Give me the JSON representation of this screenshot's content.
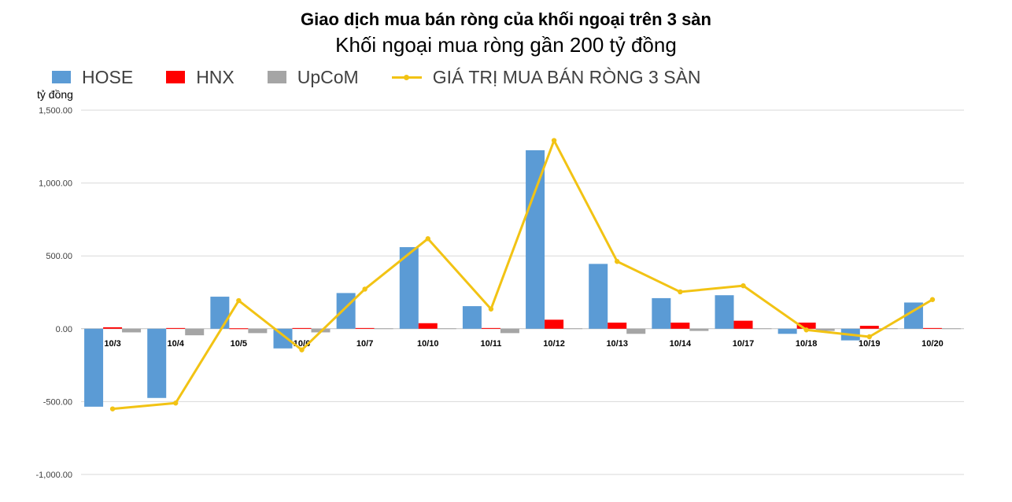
{
  "chart_data": {
    "type": "bar",
    "title": "Giao dịch mua bán ròng của khối ngoại trên 3 sàn",
    "subtitle": "Khối ngoại mua ròng gần 200 tỷ đồng",
    "ylabel": "tỷ đồng",
    "ylim": [
      -1000,
      1500
    ],
    "yticks": [
      "1,500.00",
      "1,000.00",
      "500.00",
      "0.00",
      "-500.00",
      "-1,000.00"
    ],
    "ytick_values": [
      1500,
      1000,
      500,
      0,
      -500,
      -1000
    ],
    "categories": [
      "10/3",
      "10/4",
      "10/5",
      "10/6",
      "10/7",
      "10/10",
      "10/11",
      "10/12",
      "10/13",
      "10/14",
      "10/17",
      "10/18",
      "10/19",
      "10/20"
    ],
    "series": [
      {
        "name": "HOSE",
        "kind": "bar",
        "color": "#5B9BD5",
        "values": [
          -535,
          -475,
          220,
          -135,
          245,
          560,
          155,
          1225,
          445,
          210,
          230,
          -35,
          -80,
          180
        ]
      },
      {
        "name": "HNX",
        "kind": "bar",
        "color": "#FF0000",
        "values": [
          10,
          5,
          3,
          5,
          5,
          38,
          5,
          62,
          42,
          42,
          55,
          42,
          20,
          5
        ]
      },
      {
        "name": "UpCoM",
        "kind": "bar",
        "color": "#A5A5A5",
        "values": [
          -25,
          -45,
          -30,
          -25,
          3,
          3,
          -30,
          3,
          -35,
          -15,
          3,
          -15,
          3,
          3
        ]
      },
      {
        "name": "GIÁ TRỊ MUA BÁN RÒNG 3 SÀN",
        "kind": "line",
        "color": "#F2C314",
        "values": [
          -550,
          -510,
          193,
          -145,
          272,
          618,
          135,
          1292,
          462,
          253,
          295,
          -8,
          -55,
          200
        ]
      }
    ],
    "grid": true,
    "legend_position": "top"
  }
}
